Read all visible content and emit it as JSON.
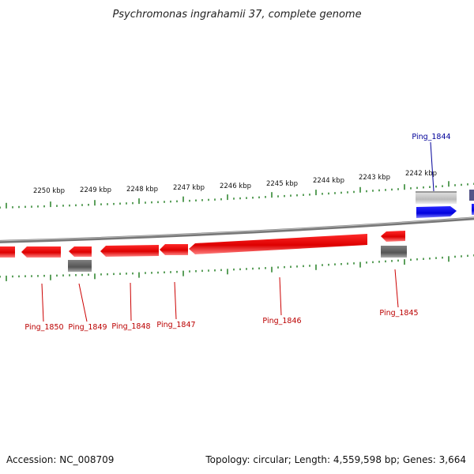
{
  "title": "Psychromonas ingrahamii 37, complete genome",
  "footer": {
    "accession": "Accession: NC_008709",
    "summary": "Topology: circular; Length: 4,559,598 bp; Genes: 3,664"
  },
  "scale_labels": [
    "2250 kbp",
    "2249 kbp",
    "2248 kbp",
    "2247 kbp",
    "2246 kbp",
    "2245 kbp",
    "2244 kbp",
    "2243 kbp",
    "2242 kbp"
  ],
  "genes": [
    {
      "label": "Ping_1844",
      "strand": "forward"
    },
    {
      "label": "Ping_1845",
      "strand": "reverse"
    },
    {
      "label": "Ping_1846",
      "strand": "reverse"
    },
    {
      "label": "Ping_1847",
      "strand": "reverse"
    },
    {
      "label": "Ping_1848",
      "strand": "reverse"
    },
    {
      "label": "Ping_1849",
      "strand": "reverse"
    },
    {
      "label": "Ping_1850",
      "strand": "reverse"
    }
  ],
  "colors": {
    "forward_gene": "#0000ee",
    "reverse_gene": "#ee0000",
    "forward_label": "#000099",
    "reverse_label": "#bb0000",
    "ticks": "#338833",
    "backbone": "#888888"
  }
}
